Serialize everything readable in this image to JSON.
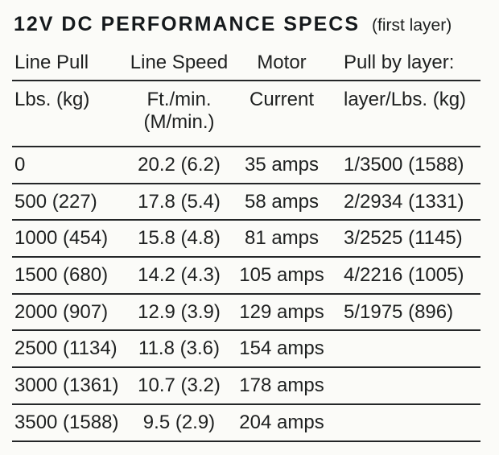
{
  "page": {
    "title": "12V DC PERFORMANCE SPECS",
    "subtitle": "(first layer)"
  },
  "table": {
    "columns": [
      {
        "header": "Line Pull",
        "subheader": "Lbs. (kg)"
      },
      {
        "header": "Line Speed",
        "subheader": "Ft./min.",
        "subheader2": "(M/min.)"
      },
      {
        "header": "Motor",
        "subheader": "Current"
      },
      {
        "header": "Pull by layer:",
        "subheader": "layer/Lbs. (kg)"
      }
    ],
    "rows": [
      [
        "0",
        "20.2 (6.2)",
        "35 amps",
        "1/3500 (1588)"
      ],
      [
        "500 (227)",
        "17.8 (5.4)",
        "58 amps",
        "2/2934 (1331)"
      ],
      [
        "1000 (454)",
        "15.8 (4.8)",
        "81 amps",
        "3/2525 (1145)"
      ],
      [
        "1500 (680)",
        "14.2 (4.3)",
        "105 amps",
        "4/2216 (1005)"
      ],
      [
        "2000 (907)",
        "12.9 (3.9)",
        "129 amps",
        "5/1975 (896)"
      ],
      [
        "2500 (1134)",
        "11.8 (3.6)",
        "154 amps",
        ""
      ],
      [
        "3000 (1361)",
        "10.7 (3.2)",
        "178 amps",
        ""
      ],
      [
        "3500 (1588)",
        "9.5 (2.9)",
        "204 amps",
        ""
      ]
    ]
  },
  "colors": {
    "background": "#fbfbf8",
    "text": "#1e2020",
    "rule": "#242628"
  }
}
